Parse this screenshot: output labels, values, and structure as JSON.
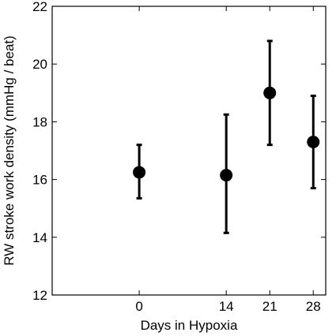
{
  "chart_data": {
    "type": "scatter",
    "title": "",
    "xlabel": "Days in Hypoxia",
    "ylabel": "RW stroke work density (mmHg / beat)",
    "x": [
      0,
      14,
      21,
      28
    ],
    "y": [
      16.25,
      16.15,
      19.0,
      17.3
    ],
    "error_low": [
      15.35,
      14.15,
      17.2,
      15.7
    ],
    "error_high": [
      17.2,
      18.25,
      20.8,
      18.9
    ],
    "xticks": [
      0,
      14,
      21,
      28
    ],
    "xtick_labels": [
      "0",
      "14",
      "21",
      "28"
    ],
    "yticks": [
      12,
      14,
      16,
      18,
      20,
      22
    ],
    "ytick_labels": [
      "12",
      "14",
      "16",
      "18",
      "20",
      "22"
    ],
    "xlim": [
      -14,
      30
    ],
    "ylim": [
      12,
      22
    ],
    "grid": false,
    "legend": "none",
    "marker_color": "#000000"
  }
}
